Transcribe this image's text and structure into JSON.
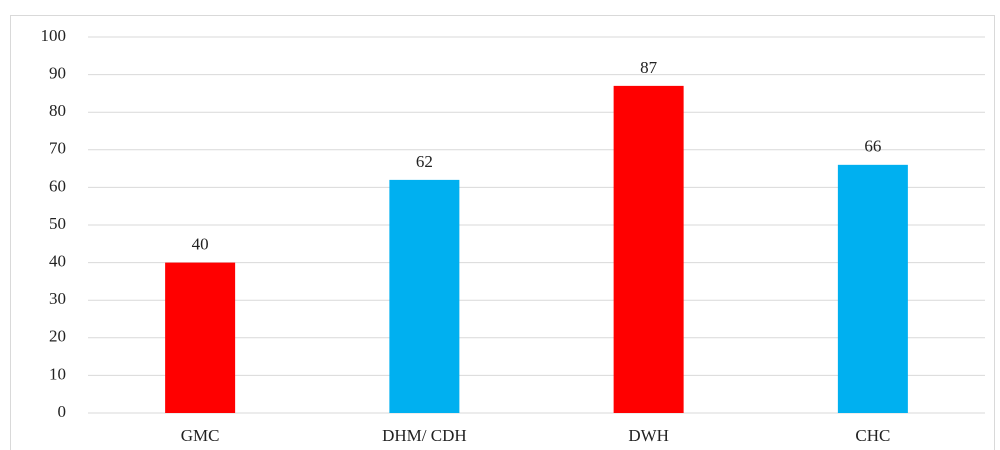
{
  "chart_data": {
    "type": "bar",
    "categories": [
      "GMC",
      "DHM/ CDH",
      "DWH",
      "CHC"
    ],
    "values": [
      40,
      62,
      87,
      66
    ],
    "colors": [
      "#ff0000",
      "#00b0f0",
      "#ff0000",
      "#00b0f0"
    ],
    "ylim": [
      0,
      100
    ],
    "yticks": [
      0,
      10,
      20,
      30,
      40,
      50,
      60,
      70,
      80,
      90,
      100
    ],
    "grid": true
  }
}
